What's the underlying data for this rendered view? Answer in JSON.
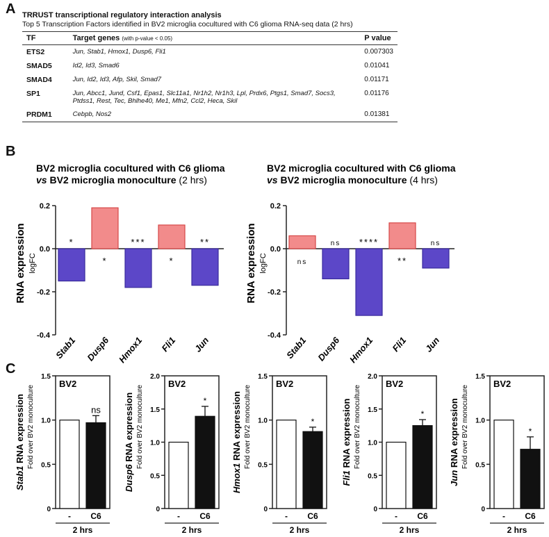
{
  "panel_labels": [
    "A",
    "B",
    "C"
  ],
  "table": {
    "title": "TRRUST  transcriptional regulatory interaction analysis",
    "subtitle": "Top 5 Transcription Factors identified in BV2 microglia cocultured with C6 glioma RNA-seq data (2 hrs)",
    "headers": {
      "tf": "TF",
      "genes": "Target genes",
      "genes_note": "(with p-value < 0.05)",
      "p": "P value"
    },
    "rows": [
      {
        "tf": "ETS2",
        "genes": "Jun, Stab1, Hmox1, Dusp6, Fli1",
        "p": "0.007303"
      },
      {
        "tf": "SMAD5",
        "genes": "Id2, Id3, Smad6",
        "p": "0.01041"
      },
      {
        "tf": "SMAD4",
        "genes": "Jun, Id2, Id3, Afp, Skil, Smad7",
        "p": "0.01171"
      },
      {
        "tf": "SP1",
        "genes": "Jun, Abcc1, Jund, Csf1, Epas1, Slc11a1, Nr1h2, Nr1h3, Lpl, Prdx6, Ptgs1, Smad7, Socs3, Ptdss1, Rest, Tec, Bhlhe40, Me1, Mfn2, Ccl2, Heca, Skil",
        "p": "0.01176"
      },
      {
        "tf": "PRDM1",
        "genes": "Cebpb, Nos2",
        "p": "0.01381"
      }
    ]
  },
  "chart_data": [
    {
      "type": "bar",
      "panel": "B",
      "title_line1": "BV2 microglia cocultured with C6 glioma",
      "title_vs": "vs",
      "title_line2": "BV2 microglia monoculture",
      "title_time": "(2 hrs)",
      "ylabel": "RNA expression",
      "ylabel2": "logFC",
      "ylim": [
        -0.4,
        0.2
      ],
      "yticks": [
        "0.2",
        "0.0",
        "-0.2",
        "-0.4"
      ],
      "categories": [
        "Stab1",
        "Dusp6",
        "Hmox1",
        "Fli1",
        "Jun"
      ],
      "values": [
        -0.15,
        0.19,
        -0.18,
        0.11,
        -0.17
      ],
      "significance": [
        "*",
        "*",
        "***",
        "*",
        "**"
      ],
      "colors": {
        "up": "#f28b8b",
        "down": "#5c47c8"
      }
    },
    {
      "type": "bar",
      "panel": "B",
      "title_line1": "BV2 microglia cocultured with C6 glioma",
      "title_vs": "vs",
      "title_line2": "BV2 microglia monoculture",
      "title_time": "(4 hrs)",
      "ylabel": "RNA expression",
      "ylabel2": "logFC",
      "ylim": [
        -0.4,
        0.2
      ],
      "yticks": [
        "0.2",
        "0.0",
        "-0.2",
        "-0.4"
      ],
      "categories": [
        "Stab1",
        "Dusp6",
        "Hmox1",
        "Fli1",
        "Jun"
      ],
      "values": [
        0.06,
        -0.14,
        -0.31,
        0.12,
        -0.09
      ],
      "significance": [
        "ns",
        "ns",
        "****",
        "**",
        "ns"
      ],
      "colors": {
        "up": "#f28b8b",
        "down": "#5c47c8"
      }
    },
    {
      "type": "bar",
      "panel": "C",
      "gene": "Stab1",
      "ylabel_suffix": " RNA expression",
      "ylabel2": "Fold over BV2 monoculture",
      "box_label": "BV2",
      "ylim": [
        0,
        1.5
      ],
      "yticks": [
        "0",
        "0.5",
        "1.0",
        "1.5"
      ],
      "categories": [
        "-",
        "C6"
      ],
      "values": [
        1.0,
        0.97
      ],
      "error": [
        0,
        0.08
      ],
      "significance": "ns",
      "xgroup": "2 hrs"
    },
    {
      "type": "bar",
      "panel": "C",
      "gene": "Dusp6",
      "ylabel_suffix": " RNA expression",
      "ylabel2": "Fold over BV2 monoculture",
      "box_label": "BV2",
      "ylim": [
        0,
        2.0
      ],
      "yticks": [
        "0",
        "0.5",
        "1.0",
        "1.5",
        "2.0"
      ],
      "categories": [
        "-",
        "C6"
      ],
      "values": [
        1.0,
        1.39
      ],
      "error": [
        0,
        0.15
      ],
      "significance": "*",
      "xgroup": "2 hrs"
    },
    {
      "type": "bar",
      "panel": "C",
      "gene": "Hmox1",
      "ylabel_suffix": " RNA expression",
      "ylabel2": "Fold over BV2 monoculture",
      "box_label": "BV2",
      "ylim": [
        0,
        1.5
      ],
      "yticks": [
        "0",
        "0.5",
        "1.0",
        "1.5"
      ],
      "categories": [
        "-",
        "C6"
      ],
      "values": [
        1.0,
        0.87
      ],
      "error": [
        0,
        0.05
      ],
      "significance": "*",
      "xgroup": "2 hrs"
    },
    {
      "type": "bar",
      "panel": "C",
      "gene": "Fli1",
      "ylabel_suffix": " RNA expression",
      "ylabel2": "Fold over BV2 monoculture",
      "box_label": "BV2",
      "ylim": [
        0,
        2.0
      ],
      "yticks": [
        "0",
        "0.5",
        "1.0",
        "1.5",
        "2.0"
      ],
      "categories": [
        "-",
        "C6"
      ],
      "values": [
        1.0,
        1.25
      ],
      "error": [
        0,
        0.09
      ],
      "significance": "*",
      "xgroup": "2 hrs"
    },
    {
      "type": "bar",
      "panel": "C",
      "gene": "Jun",
      "ylabel_suffix": " RNA expression",
      "ylabel2": "Fold over BV2 monoculture",
      "box_label": "BV2",
      "ylim": [
        0,
        1.5
      ],
      "yticks": [
        "0",
        "0.5",
        "1.0",
        "1.5"
      ],
      "categories": [
        "-",
        "C6"
      ],
      "values": [
        1.0,
        0.67
      ],
      "error": [
        0,
        0.14
      ],
      "significance": "*",
      "xgroup": "2 hrs"
    }
  ]
}
